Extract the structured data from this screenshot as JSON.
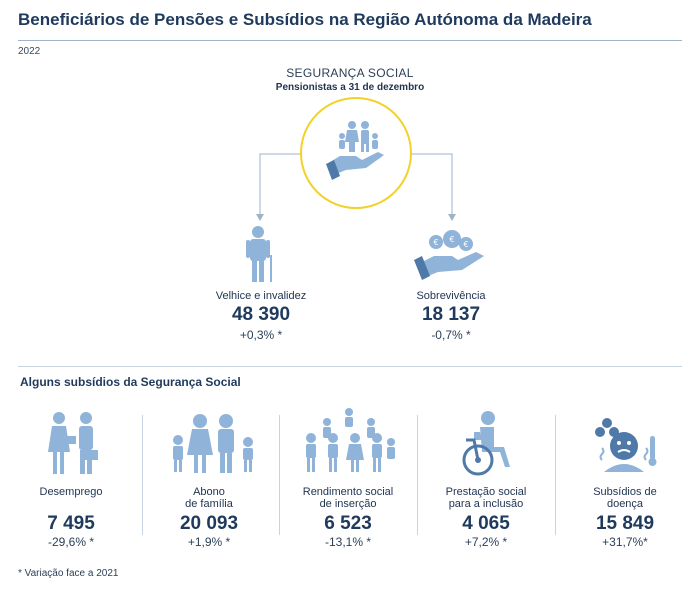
{
  "title": "Beneficiários de Pensões e Subsídios na Região Autónoma da Madeira",
  "year": "2022",
  "seguranca_social": {
    "title": "SEGURANÇA SOCIAL",
    "subtitle": "Pensionistas a 31 de dezembro"
  },
  "pensions": [
    {
      "label": "Velhice e invalidez",
      "value": "48 390",
      "variation": "+0,3% *"
    },
    {
      "label": "Sobrevivência",
      "value": "18 137",
      "variation": "-0,7% *"
    }
  ],
  "subsidies_title": "Alguns subsídios da Segurança Social",
  "subsidies": [
    {
      "label_lines": [
        "Desemprego"
      ],
      "value": "7 495",
      "variation": "-29,6% *",
      "icon": "unemployed-people-icon"
    },
    {
      "label_lines": [
        "Abono",
        "de família"
      ],
      "value": "20 093",
      "variation": "+1,9% *",
      "icon": "family-icon"
    },
    {
      "label_lines": [
        "Rendimento social",
        "de inserção"
      ],
      "value": "6 523",
      "variation": "-13,1% *",
      "icon": "community-group-icon"
    },
    {
      "label_lines": [
        "Prestação social",
        "para a inclusão"
      ],
      "value": "4 065",
      "variation": "+7,2% *",
      "icon": "wheelchair-icon"
    },
    {
      "label_lines": [
        "Subsídios de",
        "doença"
      ],
      "value": "15 849",
      "variation": "+31,7%*",
      "icon": "sick-person-icon"
    }
  ],
  "footnote": "* Variação face a 2021",
  "colors": {
    "accent_yellow": "#f2d22a",
    "icon_blue": "#8fb3d9",
    "title_navy": "#1f3a5c"
  }
}
